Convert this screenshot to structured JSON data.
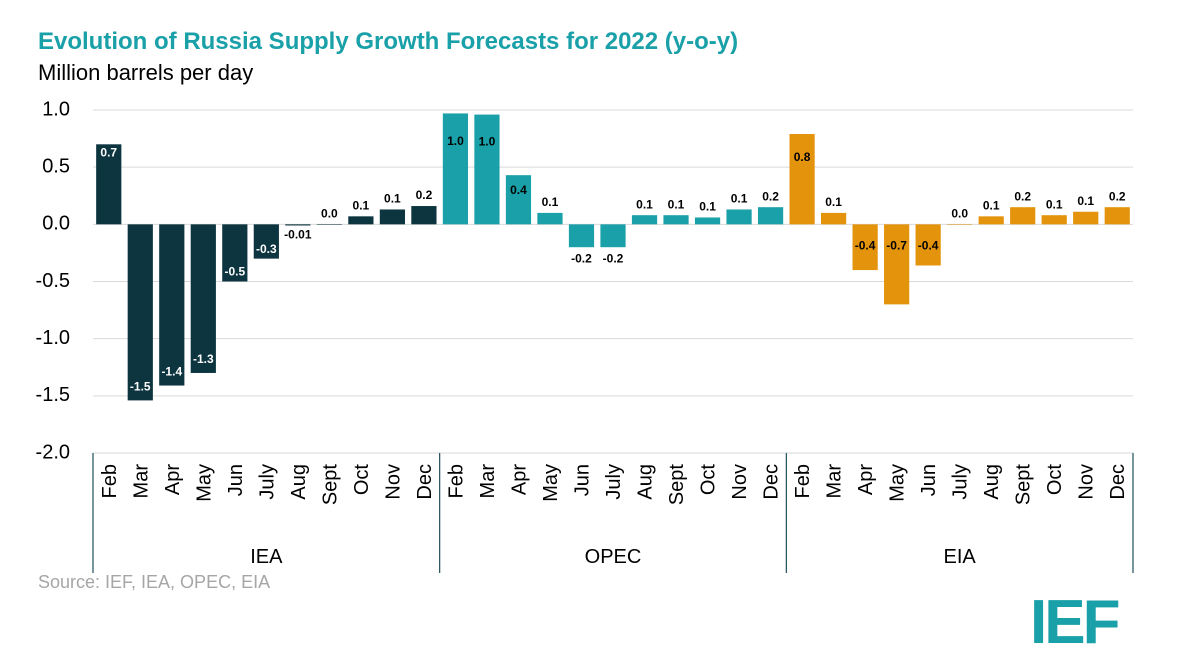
{
  "chart_data": {
    "type": "bar",
    "title": "Evolution of Russia Supply Growth Forecasts for 2022 (y-o-y)",
    "ylabel": "Million barrels per day",
    "ylim": [
      -2.0,
      1.0
    ],
    "yticks": [
      "1.0",
      "0.5",
      "0.0",
      "-0.5",
      "-1.0",
      "-1.5",
      "-2.0"
    ],
    "ytick_values": [
      1.0,
      0.5,
      0.0,
      -0.5,
      -1.0,
      -1.5,
      -2.0
    ],
    "grid": true,
    "source": "Source: IEF, IEA, OPEC, EIA",
    "groups": [
      {
        "name": "IEA",
        "color": "#0d3540",
        "categories": [
          "Feb",
          "Mar",
          "Apr",
          "May",
          "Jun",
          "July",
          "Aug",
          "Sept",
          "Oct",
          "Nov",
          "Dec"
        ],
        "values": [
          0.7,
          -1.54,
          -1.41,
          -1.3,
          -0.5,
          -0.3,
          -0.01,
          0.0,
          0.07,
          0.13,
          0.16
        ],
        "labels": [
          "0.7",
          "-1.5",
          "-1.4",
          "-1.3",
          "-0.5",
          "-0.3",
          "-0.01",
          "0.0",
          "0.1",
          "0.1",
          "0.2"
        ]
      },
      {
        "name": "OPEC",
        "color": "#1aa0a8",
        "categories": [
          "Feb",
          "Mar",
          "Apr",
          "May",
          "Jun",
          "July",
          "Aug",
          "Sept",
          "Oct",
          "Nov",
          "Dec"
        ],
        "values": [
          0.97,
          0.96,
          0.43,
          0.1,
          -0.2,
          -0.2,
          0.08,
          0.08,
          0.06,
          0.13,
          0.15
        ],
        "labels": [
          "1.0",
          "1.0",
          "0.4",
          "0.1",
          "-0.2",
          "-0.2",
          "0.1",
          "0.1",
          "0.1",
          "0.1",
          "0.2"
        ]
      },
      {
        "name": "EIA",
        "color": "#e4940c",
        "categories": [
          "Feb",
          "Mar",
          "Apr",
          "May",
          "Jun",
          "July",
          "Aug",
          "Sept",
          "Oct",
          "Nov",
          "Dec"
        ],
        "values": [
          0.79,
          0.1,
          -0.4,
          -0.7,
          -0.36,
          0.0,
          0.07,
          0.15,
          0.08,
          0.11,
          0.15
        ],
        "labels": [
          "0.8",
          "0.1",
          "-0.4",
          "-0.7",
          "-0.4",
          "0.0",
          "0.1",
          "0.2",
          "0.1",
          "0.1",
          "0.2"
        ]
      }
    ]
  },
  "logo_text": "IEF"
}
